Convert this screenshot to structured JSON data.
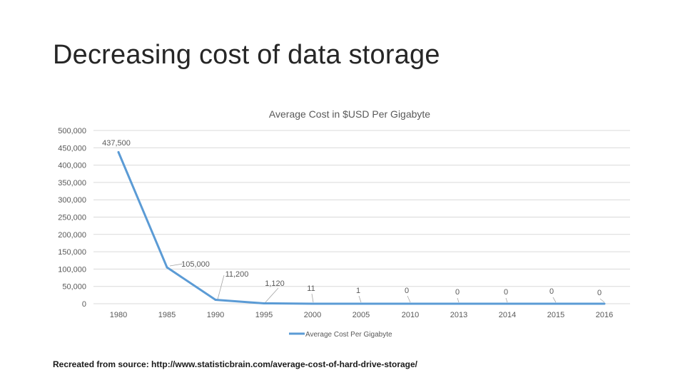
{
  "slide": {
    "title": "Decreasing cost of data storage",
    "source": "Recreated from source: http://www.statisticbrain.com/average-cost-of-hard-drive-storage/"
  },
  "chart_data": {
    "type": "line",
    "title": "Average Cost in $USD Per Gigabyte",
    "xlabel": "",
    "ylabel": "",
    "categories": [
      "1980",
      "1985",
      "1990",
      "1995",
      "2000",
      "2005",
      "2010",
      "2013",
      "2014",
      "2015",
      "2016"
    ],
    "series": [
      {
        "name": "Average Cost Per Gigabyte",
        "values": [
          437500,
          105000,
          11200,
          1120,
          11,
          1,
          0,
          0,
          0,
          0,
          0
        ],
        "labels": [
          "437,500",
          "105,000",
          "11,200",
          "1,120",
          "11",
          "1",
          "0",
          "0",
          "0",
          "0",
          "0"
        ]
      }
    ],
    "yticks": [
      "0",
      "50,000",
      "100,000",
      "150,000",
      "200,000",
      "250,000",
      "300,000",
      "350,000",
      "400,000",
      "450,000",
      "500,000"
    ],
    "ylim": [
      0,
      500000
    ],
    "grid": true,
    "legend": "bottom",
    "colors": {
      "line": "#5b9bd5",
      "grid": "#d9d9d9",
      "label": "#595959"
    }
  }
}
